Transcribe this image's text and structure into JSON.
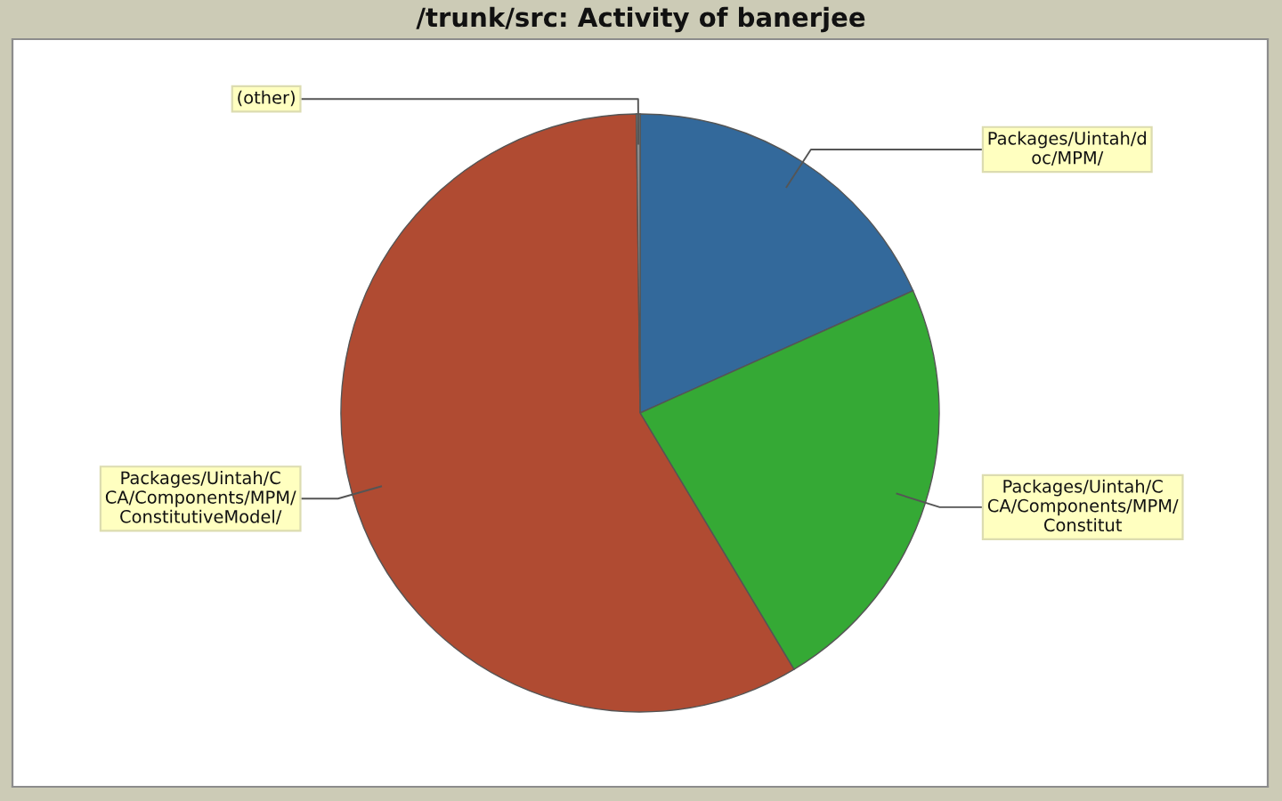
{
  "chart_data": {
    "type": "pie",
    "title": "/trunk/src: Activity of banerjee",
    "categories": [
      "Packages/Uintah/doc/MPM/",
      "Packages/Uintah/CCA/Components/MPM/Constitut",
      "Packages/Uintah/CCA/Components/MPM/ConstitutiveModel/",
      "(other)"
    ],
    "values": [
      18.3,
      23.1,
      58.4,
      0.2
    ],
    "colors": [
      "#33699b",
      "#35a935",
      "#b04b32",
      "#8e8e8e"
    ]
  }
}
